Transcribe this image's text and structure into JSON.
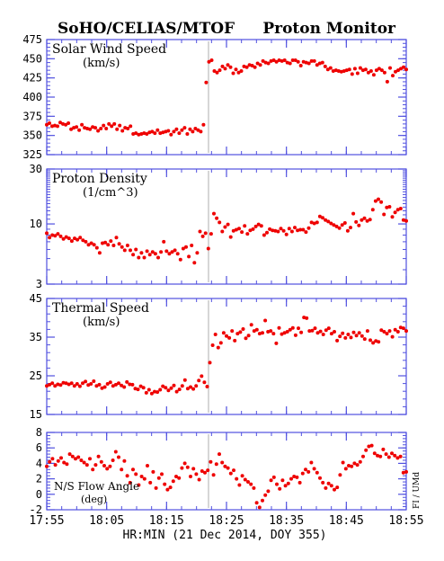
{
  "header": {
    "left": "SoHO/CELIAS/MTOF",
    "right": "Proton Monitor"
  },
  "side_label": "FI / UMd",
  "colors": {
    "frame": "#5050e0",
    "points": "#ee0000",
    "marker_line": "#bbbbbb",
    "text": "#000000"
  },
  "chart_data": {
    "type": "scatter",
    "xlabel": "HR:MIN (21 Dec 2014, DOY 355)",
    "xlim": [
      "17:55",
      "18:55"
    ],
    "x_ticks": [
      "17:55",
      "18:05",
      "18:15",
      "18:25",
      "18:35",
      "18:45",
      "18:55"
    ],
    "event_line_time": "18:22",
    "panels": [
      {
        "id": "speed",
        "label_lines": [
          "Solar Wind Speed",
          "(km/s)"
        ],
        "scale": "linear",
        "ylim": [
          325,
          475
        ],
        "y_ticks": [
          325,
          350,
          375,
          400,
          425,
          450,
          475
        ],
        "values": [
          364,
          366,
          362,
          363,
          362,
          367,
          365,
          364,
          366,
          358,
          360,
          361,
          357,
          364,
          360,
          359,
          358,
          361,
          360,
          356,
          359,
          363,
          359,
          365,
          362,
          365,
          358,
          363,
          356,
          360,
          359,
          362,
          352,
          353,
          351,
          352,
          353,
          352,
          354,
          355,
          353,
          357,
          353,
          354,
          355,
          356,
          351,
          355,
          358,
          353,
          357,
          360,
          352,
          358,
          355,
          359,
          357,
          355,
          364,
          419,
          446,
          448,
          434,
          432,
          435,
          440,
          437,
          442,
          439,
          431,
          436,
          432,
          434,
          440,
          439,
          442,
          441,
          439,
          444,
          442,
          447,
          445,
          444,
          447,
          448,
          446,
          448,
          447,
          448,
          445,
          444,
          448,
          448,
          446,
          441,
          446,
          445,
          444,
          447,
          447,
          442,
          444,
          445,
          440,
          436,
          438,
          434,
          435,
          434,
          433,
          434,
          435,
          436,
          430,
          437,
          431,
          438,
          435,
          436,
          432,
          434,
          429,
          435,
          437,
          435,
          432,
          420,
          438,
          428,
          433,
          435,
          437,
          439,
          436
        ]
      },
      {
        "id": "density",
        "label_lines": [
          "Proton Density",
          "(1/cm^3)"
        ],
        "scale": "log",
        "ylim": [
          3,
          30
        ],
        "y_ticks": [
          3,
          10,
          30
        ],
        "values": [
          8.3,
          7.6,
          8.0,
          7.9,
          8.2,
          7.8,
          7.4,
          7.7,
          7.5,
          7.1,
          7.5,
          7.3,
          7.6,
          7.2,
          7.0,
          6.6,
          6.8,
          6.6,
          6.2,
          5.6,
          6.8,
          6.9,
          6.6,
          7.1,
          6.5,
          7.6,
          6.7,
          6.3,
          5.9,
          6.5,
          5.9,
          5.4,
          6.0,
          5.1,
          5.6,
          5.1,
          5.8,
          5.4,
          5.7,
          5.5,
          5.1,
          5.7,
          7.0,
          5.8,
          5.5,
          5.7,
          5.9,
          5.5,
          4.9,
          6.1,
          6.3,
          5.2,
          6.5,
          4.6,
          5.6,
          8.6,
          7.8,
          8.3,
          6.1,
          8.2,
          12.3,
          11.2,
          10.3,
          8.6,
          9.4,
          9.9,
          7.7,
          8.7,
          8.9,
          9.1,
          8.5,
          9.6,
          8.2,
          8.8,
          9.0,
          9.5,
          9.9,
          9.6,
          8.0,
          8.4,
          9.0,
          8.8,
          8.7,
          8.6,
          9.1,
          8.7,
          8.1,
          9.1,
          8.6,
          9.3,
          8.8,
          8.9,
          8.9,
          8.5,
          9.2,
          10.3,
          10.1,
          10.3,
          11.6,
          11.3,
          10.8,
          10.5,
          10.1,
          9.8,
          9.5,
          9.2,
          9.8,
          10.2,
          8.7,
          9.3,
          12.3,
          10.4,
          9.7,
          10.8,
          11.2,
          10.6,
          10.9,
          13.3,
          15.8,
          16.4,
          15.5,
          12.1,
          13.9,
          14.1,
          11.5,
          12.6,
          13.3,
          13.6,
          10.8,
          10.6
        ]
      },
      {
        "id": "thermal",
        "label_lines": [
          "Thermal Speed",
          "(km/s)"
        ],
        "scale": "linear",
        "ylim": [
          15,
          45
        ],
        "y_ticks": [
          15,
          25,
          35,
          45
        ],
        "values": [
          22.4,
          22.7,
          23.1,
          22.4,
          22.8,
          22.6,
          23.2,
          23.1,
          22.8,
          23.1,
          22.4,
          22.9,
          22.3,
          23.1,
          23.5,
          22.6,
          22.9,
          23.6,
          22.4,
          22.7,
          21.8,
          22.1,
          22.9,
          23.3,
          22.4,
          22.7,
          23.1,
          22.5,
          22.1,
          23.4,
          22.8,
          22.7,
          21.7,
          21.5,
          22.3,
          21.9,
          20.6,
          21.4,
          20.4,
          20.9,
          20.8,
          21.4,
          22.3,
          21.9,
          21.2,
          21.8,
          22.5,
          20.9,
          21.5,
          22.4,
          23.9,
          21.7,
          22.1,
          21.6,
          22.4,
          23.8,
          24.9,
          23.3,
          22.2,
          28.4,
          32.9,
          35.7,
          32.3,
          33.5,
          36.1,
          35.3,
          34.8,
          36.6,
          34.1,
          35.9,
          36.3,
          37.1,
          34.7,
          35.4,
          38.2,
          36.6,
          36.9,
          35.9,
          36.1,
          39.3,
          36.4,
          36.6,
          35.9,
          33.4,
          37.4,
          35.8,
          36.1,
          36.4,
          36.9,
          37.4,
          35.5,
          37.3,
          36.2,
          40.1,
          39.9,
          36.6,
          36.7,
          37.3,
          36.1,
          36.5,
          35.7,
          36.8,
          37.3,
          35.9,
          36.4,
          34.1,
          35.2,
          36.0,
          34.8,
          35.7,
          34.9,
          36.2,
          35.4,
          36.1,
          35.3,
          34.5,
          36.6,
          34.2,
          33.5,
          34.0,
          33.8,
          36.8,
          36.4,
          35.9,
          36.6,
          35.1,
          36.9,
          36.4,
          37.5,
          37.3,
          36.6
        ]
      },
      {
        "id": "flow",
        "label_lines": [
          "N/S Flow Angle",
          "(deg)"
        ],
        "scale": "linear",
        "ylim": [
          -2,
          8
        ],
        "y_ticks": [
          -2,
          0,
          2,
          4,
          6,
          8
        ],
        "values": [
          3.6,
          4.2,
          4.6,
          3.8,
          4.3,
          4.7,
          4.1,
          3.9,
          5.2,
          4.9,
          4.6,
          4.8,
          4.4,
          4.1,
          3.8,
          4.6,
          3.2,
          3.8,
          4.9,
          4.2,
          3.7,
          3.3,
          3.6,
          4.4,
          5.5,
          4.8,
          3.2,
          4.3,
          2.4,
          1.5,
          3.2,
          2.6,
          1.2,
          2.3,
          2.0,
          3.7,
          1.5,
          2.9,
          0.8,
          2.1,
          2.6,
          1.3,
          0.6,
          0.9,
          1.7,
          2.3,
          2.1,
          3.4,
          4.0,
          3.5,
          2.3,
          3.3,
          2.6,
          1.9,
          3.0,
          2.8,
          3.1,
          4.2,
          2.5,
          3.9,
          5.2,
          4.1,
          3.6,
          3.4,
          2.7,
          3.1,
          2.0,
          1.2,
          2.4,
          1.9,
          1.6,
          1.3,
          0.8,
          -1.1,
          -1.7,
          -0.8,
          -0.1,
          0.4,
          1.8,
          2.2,
          1.3,
          0.7,
          1.8,
          1.1,
          1.4,
          2.0,
          2.3,
          2.2,
          1.5,
          2.7,
          3.2,
          2.9,
          4.1,
          3.3,
          2.8,
          2.1,
          1.5,
          0.8,
          1.4,
          1.1,
          0.6,
          0.9,
          2.5,
          4.1,
          3.3,
          3.7,
          3.6,
          4.0,
          3.8,
          4.2,
          4.9,
          5.7,
          6.2,
          6.3,
          5.3,
          5.0,
          4.9,
          5.8,
          5.2,
          4.8,
          5.3,
          5.0,
          4.7,
          4.9,
          2.8,
          2.9
        ]
      }
    ]
  }
}
